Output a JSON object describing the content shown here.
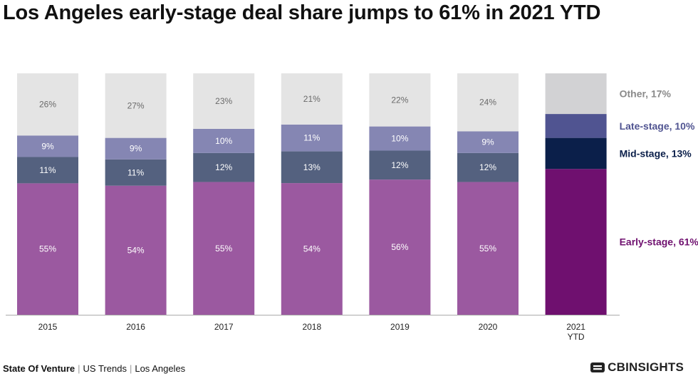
{
  "title": "Los Angeles early-stage deal share jumps to 61% in 2021 YTD",
  "footer": {
    "source": "State Of Venture",
    "parts": [
      "US Trends",
      "Los Angeles"
    ],
    "logo_prefix": "CB",
    "logo_suffix": "INSIGHTS"
  },
  "chart_data": {
    "type": "bar",
    "stacked": true,
    "percent": true,
    "categories": [
      "2015",
      "2016",
      "2017",
      "2018",
      "2019",
      "2020",
      "2021 YTD"
    ],
    "ylim": [
      0,
      100
    ],
    "series": [
      {
        "name": "Early-stage",
        "values": [
          55,
          54,
          55,
          54,
          56,
          55,
          61
        ],
        "labels": [
          "55%",
          "54%",
          "55%",
          "54%",
          "56%",
          "55%",
          ""
        ],
        "color": "#9b59a0",
        "highlight_color": "#6f106f"
      },
      {
        "name": "Mid-stage",
        "values": [
          11,
          11,
          12,
          13,
          12,
          12,
          13
        ],
        "labels": [
          "11%",
          "11%",
          "12%",
          "13%",
          "12%",
          "12%",
          ""
        ],
        "color": "#54617f",
        "highlight_color": "#0b1f4a"
      },
      {
        "name": "Late-stage",
        "values": [
          9,
          9,
          10,
          11,
          10,
          9,
          10
        ],
        "labels": [
          "9%",
          "9%",
          "10%",
          "11%",
          "10%",
          "9%",
          ""
        ],
        "color": "#8586b3",
        "highlight_color": "#505491"
      },
      {
        "name": "Other",
        "values": [
          26,
          27,
          23,
          21,
          22,
          24,
          17
        ],
        "labels": [
          "26%",
          "27%",
          "23%",
          "21%",
          "22%",
          "24%",
          ""
        ],
        "color": "#e4e4e4",
        "highlight_color": "#d2d2d4"
      }
    ],
    "legend": [
      {
        "text": "Other, 17%",
        "color": "#8a8a8a"
      },
      {
        "text": "Late-stage, 10%",
        "color": "#505491"
      },
      {
        "text": "Mid-stage, 13%",
        "color": "#0b1f4a"
      },
      {
        "text": "Early-stage, 61%",
        "color": "#6f106f"
      }
    ],
    "legend_position": "right",
    "grid": false
  }
}
